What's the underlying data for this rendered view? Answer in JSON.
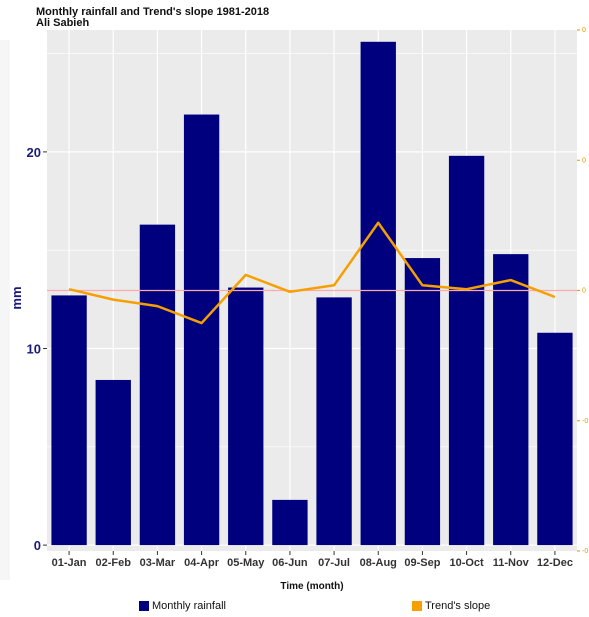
{
  "chart_data": {
    "type": "bar",
    "title": "Monthly rainfall and Trend's slope 1981-2018",
    "subtitle": "Ali Sabieh",
    "xlabel": "Time (month)",
    "ylabel": "mm",
    "categories": [
      "01-Jan",
      "02-Feb",
      "03-Mar",
      "04-Apr",
      "05-May",
      "06-Jun",
      "07-Jul",
      "08-Aug",
      "09-Sep",
      "10-Oct",
      "11-Nov",
      "12-Dec"
    ],
    "ylim": [
      -0.3,
      26.2
    ],
    "yticks": [
      0,
      10,
      20
    ],
    "y2lim": [
      -0.2,
      0.2
    ],
    "y2ticks": [
      -0.2,
      -0.1,
      0,
      0.1,
      0.2
    ],
    "y2ticklabels": [
      "-0",
      "-0",
      "0",
      "0",
      "0"
    ],
    "reference_line_y2": 0,
    "grid": true,
    "legend_position": "bottom",
    "series": [
      {
        "name": "Monthly rainfall",
        "type": "bar",
        "axis": "left",
        "color": "#00007f",
        "values": [
          12.7,
          8.4,
          16.3,
          21.9,
          13.1,
          2.3,
          12.6,
          25.6,
          14.6,
          19.8,
          14.8,
          10.8
        ]
      },
      {
        "name": "Trend's slope",
        "type": "line",
        "axis": "right",
        "color": "#f5a000",
        "values": [
          0.001,
          -0.007,
          -0.012,
          -0.025,
          0.012,
          -0.001,
          0.004,
          0.052,
          0.004,
          0.001,
          0.008,
          -0.005
        ]
      }
    ],
    "colors": {
      "panel": "#ebebeb",
      "grid": "#ffffff",
      "reference_line": "#ffaaaa"
    }
  }
}
